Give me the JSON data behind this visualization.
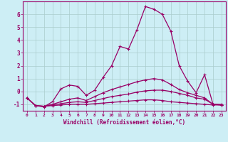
{
  "xlabel": "Windchill (Refroidissement éolien,°C)",
  "bg_color": "#cdeef5",
  "grid_color": "#aacccc",
  "line_color": "#990066",
  "xlim": [
    -0.5,
    23.5
  ],
  "ylim": [
    -1.5,
    7.0
  ],
  "yticks": [
    -1,
    0,
    1,
    2,
    3,
    4,
    5,
    6
  ],
  "xticks": [
    0,
    1,
    2,
    3,
    4,
    5,
    6,
    7,
    8,
    9,
    10,
    11,
    12,
    13,
    14,
    15,
    16,
    17,
    18,
    19,
    20,
    21,
    22,
    23
  ],
  "line1_x": [
    0,
    1,
    2,
    3,
    4,
    5,
    6,
    7,
    8,
    9,
    10,
    11,
    12,
    13,
    14,
    15,
    16,
    17,
    18,
    19,
    20,
    21,
    22,
    23
  ],
  "line1_y": [
    -0.5,
    -1.1,
    -1.2,
    -0.8,
    0.2,
    0.5,
    0.4,
    -0.3,
    0.1,
    1.1,
    2.0,
    3.5,
    3.3,
    4.8,
    6.6,
    6.4,
    6.0,
    4.7,
    2.0,
    0.8,
    -0.1,
    1.3,
    -1.0,
    -1.0
  ],
  "line2_x": [
    0,
    1,
    2,
    3,
    4,
    5,
    6,
    7,
    8,
    9,
    10,
    11,
    12,
    13,
    14,
    15,
    16,
    17,
    18,
    19,
    20,
    21,
    22,
    23
  ],
  "line2_y": [
    -0.5,
    -1.1,
    -1.15,
    -1.1,
    -1.05,
    -1.0,
    -1.0,
    -1.0,
    -0.95,
    -0.9,
    -0.85,
    -0.8,
    -0.75,
    -0.7,
    -0.65,
    -0.65,
    -0.7,
    -0.8,
    -0.85,
    -0.9,
    -0.95,
    -1.0,
    -1.05,
    -1.05
  ],
  "line3_x": [
    0,
    1,
    2,
    3,
    4,
    5,
    6,
    7,
    8,
    9,
    10,
    11,
    12,
    13,
    14,
    15,
    16,
    17,
    18,
    19,
    20,
    21,
    22,
    23
  ],
  "line3_y": [
    -0.5,
    -1.1,
    -1.15,
    -1.05,
    -0.95,
    -0.85,
    -0.8,
    -0.85,
    -0.7,
    -0.55,
    -0.4,
    -0.3,
    -0.2,
    -0.05,
    0.05,
    0.1,
    0.1,
    0.0,
    -0.15,
    -0.3,
    -0.5,
    -0.6,
    -1.0,
    -1.05
  ],
  "line4_x": [
    0,
    1,
    2,
    3,
    4,
    5,
    6,
    7,
    8,
    9,
    10,
    11,
    12,
    13,
    14,
    15,
    16,
    17,
    18,
    19,
    20,
    21,
    22,
    23
  ],
  "line4_y": [
    -0.5,
    -1.1,
    -1.15,
    -1.0,
    -0.8,
    -0.6,
    -0.5,
    -0.7,
    -0.4,
    -0.1,
    0.15,
    0.35,
    0.55,
    0.75,
    0.9,
    1.0,
    0.9,
    0.55,
    0.15,
    -0.1,
    -0.3,
    -0.5,
    -1.0,
    -1.05
  ]
}
